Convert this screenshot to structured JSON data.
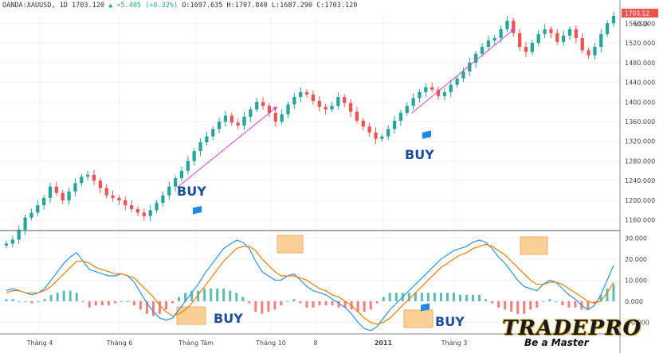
{
  "header": {
    "symbol": "OANDA:XAUUSD, 1D",
    "last": "1703.120",
    "change": "+5.405 (+0.32%)",
    "open": "O:1697.635",
    "high": "H:1707.840",
    "low": "L:1687.290",
    "close": "C:1703.120"
  },
  "price_axis": {
    "currency": "USD",
    "badge": "1703.12",
    "ticks": [
      "1560.000",
      "1520.000",
      "1480.000",
      "1440.000",
      "1400.000",
      "1360.000",
      "1320.000",
      "1280.000",
      "1240.000",
      "1200.000",
      "1160.000"
    ]
  },
  "osc_axis": {
    "ticks": [
      "30.000",
      "20.000",
      "10.000",
      "0.000",
      "-10.000"
    ]
  },
  "time_axis": {
    "labels": [
      "Tháng 4",
      "Tháng 6",
      "Tháng Tám",
      "Tháng 10",
      "8",
      "2011",
      "Tháng 3"
    ]
  },
  "annotations": {
    "buy1": "BUY",
    "buy2": "BUY",
    "buy3": "BUY",
    "buy4": "BUY"
  },
  "logo": {
    "name": "TRADEPRO",
    "tagline": "Be a Master"
  },
  "colors": {
    "up": "#26a69a",
    "down": "#ef5350",
    "macd": "#2196f3",
    "signal": "#f57c00",
    "arrow": "#d63fd6",
    "box": "#fbc886",
    "flag": "#1e88e5"
  },
  "chart_data": [
    {
      "type": "candlestick",
      "ylim": [
        1145,
        1575
      ],
      "x_labels": [
        "Tháng 4",
        "Tháng 6",
        "Tháng Tám",
        "Tháng 10",
        "8",
        "2011",
        "Tháng 3"
      ],
      "close": [
        1112,
        1120,
        1140,
        1165,
        1175,
        1190,
        1205,
        1228,
        1215,
        1200,
        1218,
        1235,
        1248,
        1252,
        1240,
        1225,
        1210,
        1205,
        1200,
        1190,
        1182,
        1175,
        1168,
        1180,
        1195,
        1210,
        1228,
        1245,
        1260,
        1280,
        1300,
        1318,
        1330,
        1345,
        1360,
        1372,
        1358,
        1352,
        1370,
        1385,
        1400,
        1392,
        1378,
        1360,
        1375,
        1395,
        1410,
        1420,
        1415,
        1402,
        1390,
        1385,
        1392,
        1410,
        1398,
        1380,
        1362,
        1350,
        1338,
        1325,
        1330,
        1345,
        1362,
        1378,
        1392,
        1408,
        1420,
        1430,
        1425,
        1412,
        1420,
        1435,
        1448,
        1462,
        1480,
        1498,
        1512,
        1525,
        1530,
        1548,
        1565,
        1540,
        1512,
        1502,
        1520,
        1538,
        1548,
        1540,
        1522,
        1535,
        1548,
        1530,
        1505,
        1495,
        1512,
        1538,
        1560,
        1575
      ],
      "buy_markers": [
        "BUY",
        "BUY"
      ]
    },
    {
      "type": "macd",
      "ylim": [
        -14,
        32
      ],
      "y_ticks": [
        30,
        20,
        10,
        0,
        -10
      ],
      "macd": [
        5,
        6,
        5,
        4,
        3,
        4,
        6,
        10,
        14,
        18,
        21,
        23,
        19,
        15,
        14,
        13,
        12,
        12,
        13,
        12,
        9,
        4,
        -1,
        -5,
        -8,
        -9,
        -8,
        -4,
        0,
        4,
        8,
        13,
        17,
        21,
        25,
        27,
        29,
        28,
        25,
        19,
        14,
        12,
        10,
        10,
        12,
        13,
        10,
        7,
        5,
        4,
        3,
        1,
        -1,
        -3,
        -6,
        -10,
        -13,
        -14,
        -12,
        -8,
        -4,
        -1,
        2,
        5,
        8,
        11,
        14,
        17,
        20,
        22,
        24,
        25,
        26,
        28,
        29,
        28,
        25,
        21,
        18,
        14,
        10,
        7,
        6,
        5,
        8,
        10,
        9,
        6,
        3,
        1,
        -2,
        -4,
        -2,
        3,
        10,
        17
      ],
      "signal": [
        4,
        5,
        5,
        4,
        4,
        4,
        5,
        7,
        10,
        13,
        16,
        19,
        19,
        18,
        16,
        15,
        14,
        13,
        13,
        12,
        11,
        8,
        5,
        2,
        -2,
        -5,
        -7,
        -6,
        -4,
        -1,
        3,
        7,
        11,
        15,
        19,
        22,
        25,
        26,
        26,
        24,
        20,
        17,
        14,
        12,
        12,
        12,
        11,
        10,
        8,
        6,
        5,
        3,
        2,
        0,
        -2,
        -5,
        -8,
        -10,
        -11,
        -10,
        -8,
        -5,
        -2,
        1,
        4,
        7,
        10,
        13,
        16,
        18,
        20,
        22,
        23,
        25,
        26,
        27,
        26,
        24,
        22,
        19,
        16,
        13,
        10,
        8,
        8,
        9,
        9,
        8,
        6,
        4,
        2,
        0,
        -1,
        0,
        4,
        9
      ],
      "buy_markers": [
        "BUY",
        "BUY"
      ]
    }
  ]
}
